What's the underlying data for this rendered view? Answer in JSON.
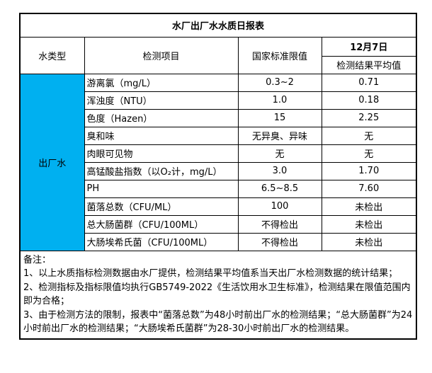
{
  "title": "水厂出厂水水质日报表",
  "header": {
    "water_type": "水类型",
    "item": "检测项目",
    "standard": "国家标准限值",
    "date": "12月7日",
    "result": "检测结果平均值"
  },
  "water_type_label": "出厂水",
  "rows": [
    {
      "item": "游离氯（mg/L）",
      "standard": "0.3~2",
      "result": "0.71"
    },
    {
      "item": "浑浊度（NTU）",
      "standard": "1.0",
      "result": "0.18"
    },
    {
      "item": "色度（Hazen）",
      "standard": "15",
      "result": "2.25"
    },
    {
      "item": "臭和味",
      "standard": "无异臭、异味",
      "result": "无"
    },
    {
      "item": "肉眼可见物",
      "standard": "无",
      "result": "无"
    },
    {
      "item": "高锰酸盐指数（以O₂计，mg/L）",
      "standard": "3.0",
      "result": "1.70"
    },
    {
      "item": "PH",
      "standard": "6.5~8.5",
      "result": "7.60"
    },
    {
      "item": "菌落总数（CFU/ML）",
      "standard": "100",
      "result": "未检出"
    },
    {
      "item": "总大肠菌群（CFU/100ML）",
      "standard": "不得检出",
      "result": "未检出"
    },
    {
      "item": "大肠埃希氏菌（CFU/100ML）",
      "standard": "不得检出",
      "result": "未检出"
    }
  ],
  "notes": {
    "label": "备注：",
    "lines": [
      "1、以上水质指标检测数据由水厂提供，检测结果平均值系当天出厂水检测数据的统计结果；",
      "2、检测指标及指标限值均执行GB5749-2022《生活饮用水卫生标准》，检测结果在限值范围内即为合格；",
      "3、由于检测方法的限制，报表中“菌落总数”为48小时前出厂水的检测结果；“总大肠菌群”为24小时前出厂水的检测结果；“大肠埃希氏菌群”为28-30小时前出厂水的检测结果。"
    ]
  },
  "colors": {
    "highlight": "#00B0F0",
    "border": "#000000"
  }
}
